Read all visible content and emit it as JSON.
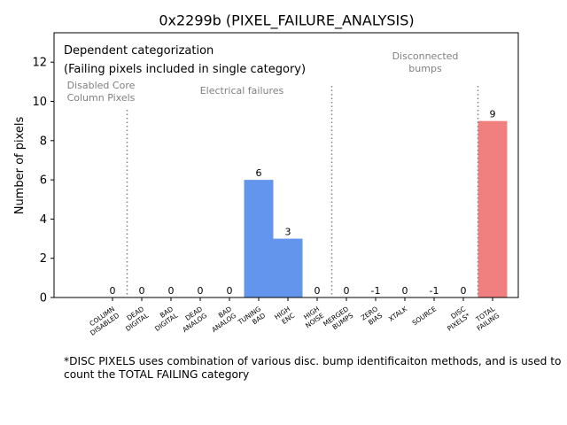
{
  "chart_data": {
    "type": "bar",
    "title": "0x2299b (PIXEL_FAILURE_ANALYSIS)",
    "xlabel": "",
    "ylabel": "Number of pixels",
    "ylim": [
      0,
      13.5
    ],
    "yticks": [
      0,
      2,
      4,
      6,
      8,
      10,
      12
    ],
    "categories": [
      "COLUMN DISABLED",
      "DEAD DIGITAL",
      "BAD DIGITAL",
      "DEAD ANALOG",
      "BAD ANALOG",
      "TUNING BAD",
      "HIGH ENC",
      "HIGH NOISE",
      "MERGED BUMPS",
      "ZERO BIAS",
      "XTALK",
      "SOURCE",
      "DISC PIXELS*",
      "TOTAL FAILING"
    ],
    "values": [
      0,
      0,
      0,
      0,
      0,
      6,
      3,
      0,
      0,
      -1,
      0,
      -1,
      0,
      9
    ],
    "data_labels": [
      "0",
      "0",
      "0",
      "0",
      "0",
      "6",
      "3",
      "0",
      "0",
      "-1",
      "0",
      "-1",
      "0",
      "9"
    ],
    "bar_colors": [
      "#6495ED",
      "#6495ED",
      "#6495ED",
      "#6495ED",
      "#6495ED",
      "#6495ED",
      "#6495ED",
      "#6495ED",
      "#6495ED",
      "#6495ED",
      "#6495ED",
      "#6495ED",
      "#6495ED",
      "#F08080"
    ],
    "separators_after_index": [
      0,
      7,
      12
    ],
    "group_labels": [
      {
        "lines": [
          "Disabled Core",
          "Column Pixels"
        ]
      },
      {
        "lines": [
          "Electrical failures"
        ]
      },
      {
        "lines": [
          "Disconnected",
          "bumps"
        ]
      }
    ],
    "annotation_lines": [
      "Dependent categorization",
      "(Failing pixels included in single category)"
    ],
    "grid": false,
    "colors": {
      "main_bar": "#6495ED",
      "total_bar": "#F08080",
      "group_text": "#808080"
    }
  },
  "footnote": "*DISC PIXELS uses combination of various disc. bump identificaiton methods, and is used to count the TOTAL FAILING category"
}
